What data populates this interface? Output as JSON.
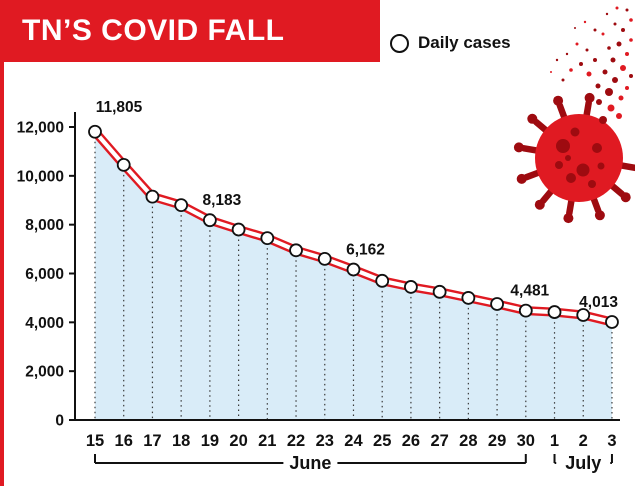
{
  "colors": {
    "red": "#e01a22",
    "dark_red": "#9e0b10",
    "area_fill": "#d9ecf8"
  },
  "chart_data": {
    "type": "line",
    "title": "TN’S COVID FALL",
    "legend": [
      "Daily cases"
    ],
    "legend_position": "top",
    "grid": "dotted-vertical",
    "x": [
      "15",
      "16",
      "17",
      "18",
      "19",
      "20",
      "21",
      "22",
      "23",
      "24",
      "25",
      "26",
      "27",
      "28",
      "29",
      "30",
      "1",
      "2",
      "3"
    ],
    "values": [
      11805,
      10450,
      9150,
      8800,
      8183,
      7800,
      7450,
      6950,
      6600,
      6162,
      5700,
      5450,
      5250,
      5000,
      4750,
      4481,
      4420,
      4300,
      4013
    ],
    "ylim": [
      0,
      12000
    ],
    "yticks": [
      0,
      2000,
      4000,
      6000,
      8000,
      10000,
      12000
    ],
    "ytick_labels": [
      "0",
      "2,000",
      "4,000",
      "6,000",
      "8,000",
      "10,000",
      "12,000"
    ],
    "xlabel": "",
    "ylabel": "",
    "annotations": [
      {
        "index": 0,
        "label": "11,805"
      },
      {
        "index": 4,
        "label": "8,183"
      },
      {
        "index": 9,
        "label": "6,162"
      },
      {
        "index": 15,
        "label": "4,481"
      },
      {
        "index": 18,
        "label": "4,013"
      }
    ],
    "x_groups": [
      {
        "label": "June",
        "start": 0,
        "end": 15
      },
      {
        "label": "July",
        "start": 16,
        "end": 18
      }
    ]
  }
}
